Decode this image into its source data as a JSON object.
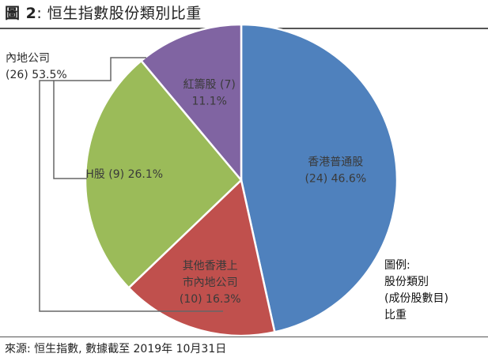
{
  "title": {
    "prefix": "圖 2",
    "text": "恒生指數股份類別比重"
  },
  "footer": "來源: 恒生指數, 數據截至 2019年 10月31日",
  "legend": [
    "圖例:",
    "股份類別",
    "(成份股數目)",
    "比重"
  ],
  "chart_data": {
    "type": "pie",
    "title": "恒生指數股份類別比重",
    "slices": [
      {
        "label": [
          "香港普通股",
          "(24) 46.6%"
        ],
        "count": 24,
        "percent": 46.6,
        "color": "#4F81BD"
      },
      {
        "label": [
          "其他香港上",
          "市內地公司",
          "(10) 16.3%"
        ],
        "count": 10,
        "percent": 16.3,
        "color": "#C0504D"
      },
      {
        "label": [
          "H股 (9) 26.1%"
        ],
        "count": 9,
        "percent": 26.1,
        "color": "#9BBB59"
      },
      {
        "label": [
          "紅籌股 (7)",
          "11.1%"
        ],
        "count": 7,
        "percent": 11.1,
        "color": "#8064A2"
      }
    ],
    "callout": [
      "內地公司",
      "(26) 53.5%"
    ],
    "start": "12 o'clock",
    "direction": "clockwise"
  }
}
